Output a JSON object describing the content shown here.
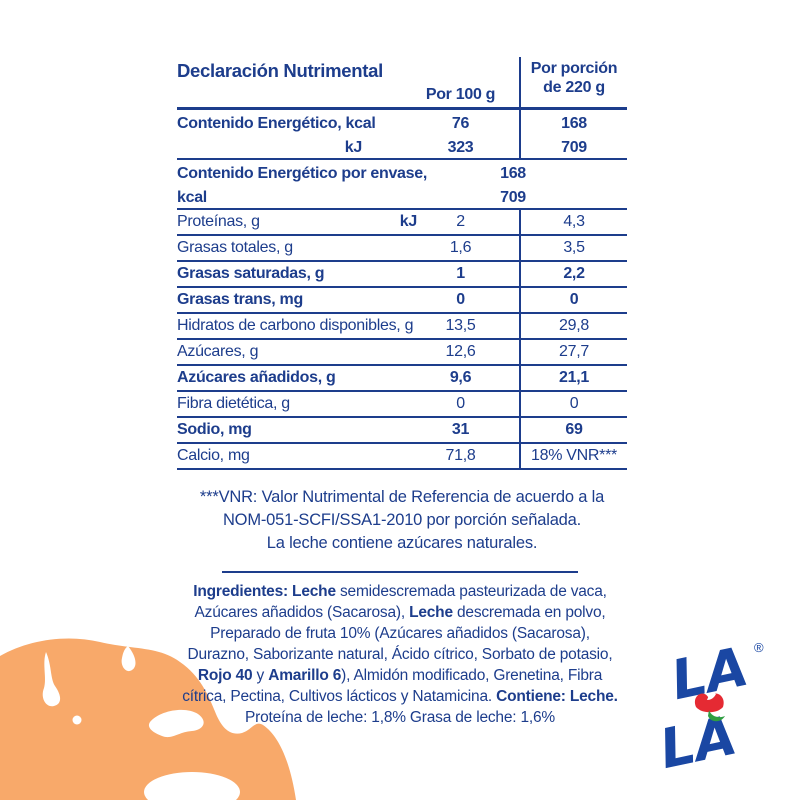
{
  "colors": {
    "text_navy": "#1d3d8c",
    "logo_blue": "#1a47a3",
    "flower_red": "#e52a33",
    "leaf_green": "#2f9e41",
    "splash_orange": "#f8a96a",
    "background": "#ffffff"
  },
  "table": {
    "title": "Declaración Nutrimental",
    "col_per100_header": "Por 100 g",
    "col_portion_header_line1": "Por porción",
    "col_portion_header_line2": "de 220 g",
    "energy_row": {
      "label_line1": "Contenido Energético, kcal",
      "label_line2": "kJ",
      "per100_line1": "76",
      "per100_line2": "323",
      "portion_line1": "168",
      "portion_line2": "709"
    },
    "energy_package_row": {
      "label_line1": "Contenido Energético por envase, kcal",
      "label_line2": "kJ",
      "value_line1": "168",
      "value_line2": "709"
    },
    "rows": [
      {
        "label": "Proteínas, g",
        "per100": "2",
        "portion": "4,3",
        "bold": false
      },
      {
        "label": "Grasas totales, g",
        "per100": "1,6",
        "portion": "3,5",
        "bold": false
      },
      {
        "label": "Grasas saturadas, g",
        "per100": "1",
        "portion": "2,2",
        "bold": true
      },
      {
        "label": "Grasas trans, mg",
        "per100": "0",
        "portion": "0",
        "bold": true
      },
      {
        "label": "Hidratos de carbono disponibles, g",
        "per100": "13,5",
        "portion": "29,8",
        "bold": false
      },
      {
        "label": "Azúcares, g",
        "per100": "12,6",
        "portion": "27,7",
        "bold": false
      },
      {
        "label": "Azúcares añadidos, g",
        "per100": "9,6",
        "portion": "21,1",
        "bold": true
      },
      {
        "label": "Fibra dietética, g",
        "per100": "0",
        "portion": "0",
        "bold": false
      },
      {
        "label": "Sodio, mg",
        "per100": "31",
        "portion": "69",
        "bold": true
      },
      {
        "label": "Calcio, mg",
        "per100": "71,8",
        "portion": "18% VNR***",
        "bold": false
      }
    ]
  },
  "footnote": {
    "line1": "***VNR: Valor Nutrimental de Referencia de acuerdo a la",
    "line2": "NOM-051-SCFI/SSA1-2010 por porción señalada.",
    "line3": "La leche contiene azúcares naturales."
  },
  "ingredients": {
    "segments": [
      {
        "text": "Ingredientes: Leche",
        "bold": true
      },
      {
        "text": " semidescremada pasteurizada de vaca, Azúcares añadidos (Sacarosa), ",
        "bold": false
      },
      {
        "text": "Leche",
        "bold": true
      },
      {
        "text": " descremada en polvo, Preparado de fruta 10% (Azúcares añadidos (Sacarosa), Durazno, Saborizante natural, Ácido cítrico, Sorbato de potasio, ",
        "bold": false
      },
      {
        "text": "Rojo 40",
        "bold": true
      },
      {
        "text": " y ",
        "bold": false
      },
      {
        "text": "Amarillo 6",
        "bold": true
      },
      {
        "text": "), Almidón modificado, Grenetina, Fibra cítrica, Pectina, Cultivos lácticos y Natamicina. ",
        "bold": false
      },
      {
        "text": "Contiene: Leche.",
        "bold": true
      },
      {
        "text": " Proteína de leche: 1,8% Grasa de leche: 1,6%",
        "bold": false
      }
    ]
  },
  "logo": {
    "brand": "LALA",
    "line1": "LA",
    "line2": "LA",
    "registered_mark": "®"
  }
}
